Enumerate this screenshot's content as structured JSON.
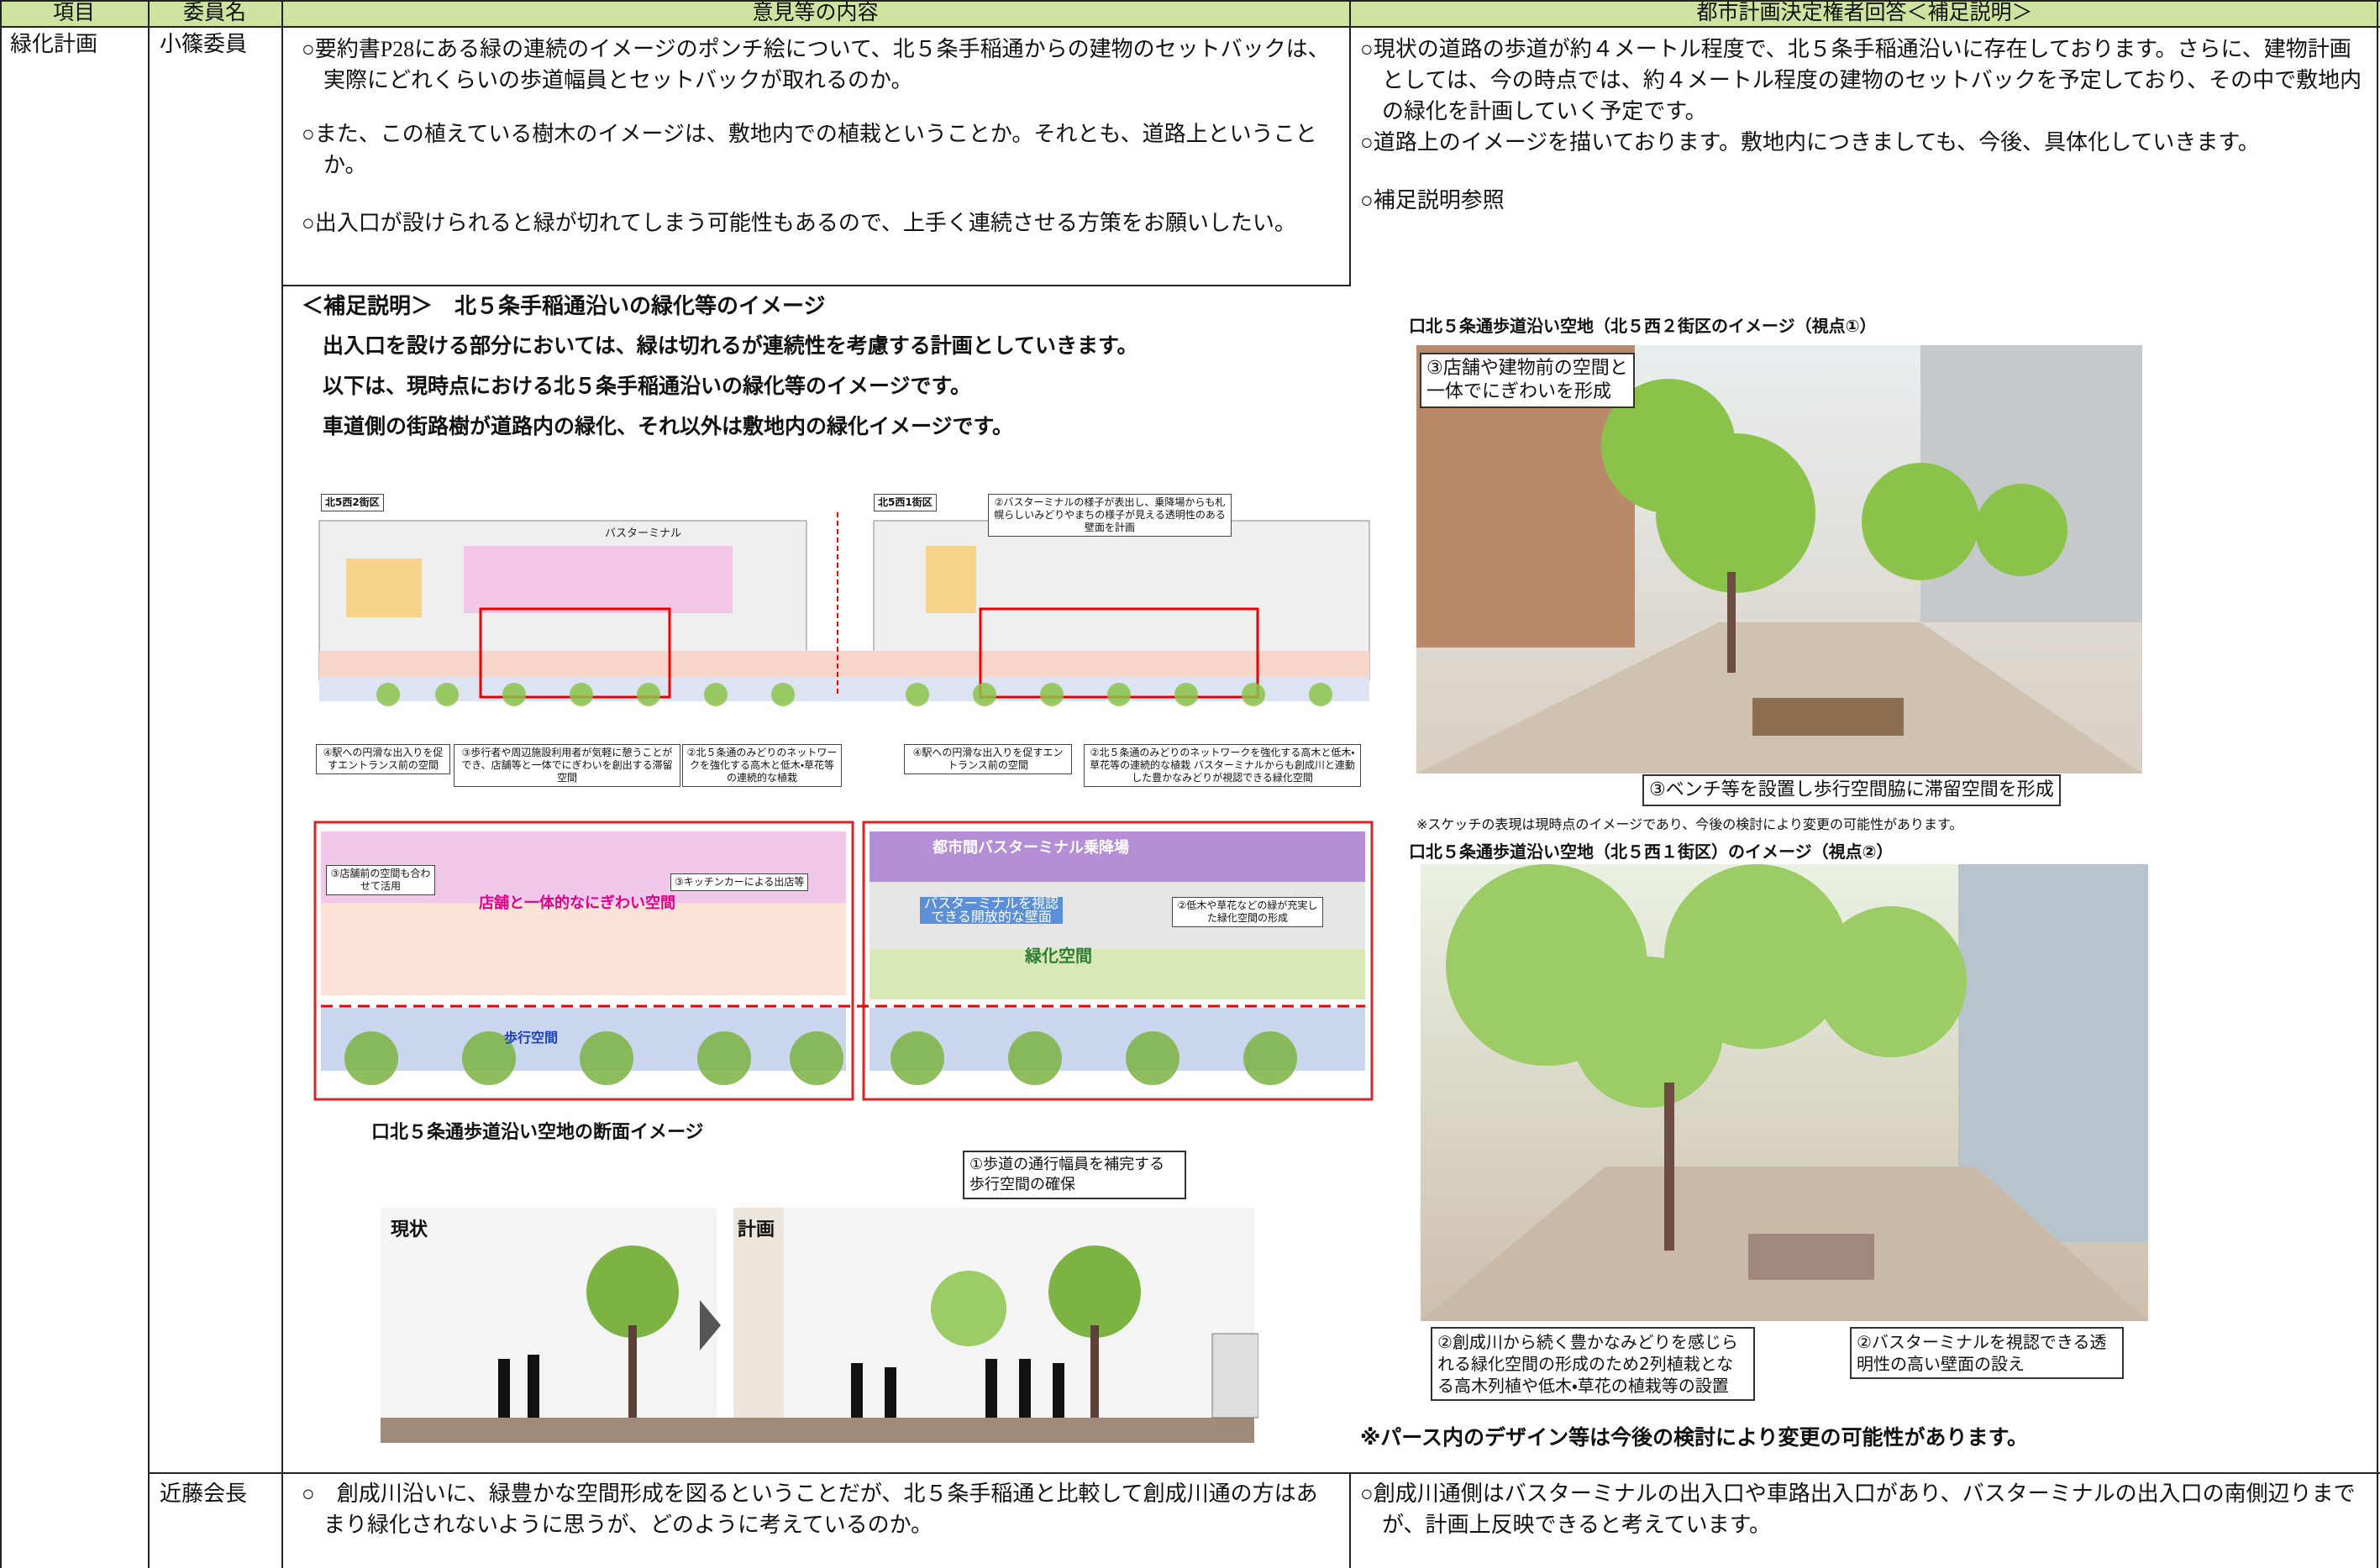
{
  "header": {
    "columns": [
      "項目",
      "委員名",
      "意見等の内容",
      "都市計画決定権者回答＜補足説明＞"
    ]
  },
  "rows": [
    {
      "item": "緑化計画",
      "member": "小篠委員",
      "opinions": [
        "○要約書P28にある緑の連続のイメージのポンチ絵について、北５条手稲通からの建物のセットバックは、実際にどれくらいの歩道幅員とセットバックが取れるのか。",
        "○また、この植えている樹木のイメージは、敷地内での植栽ということか。それとも、道路上ということか。",
        "○出入口が設けられると緑が切れてしまう可能性もあるので、上手く連続させる方策をお願いしたい。"
      ],
      "answers": [
        "○現状の道路の歩道が約４メートル程度で、北５条手稲通沿いに存在しております。さらに、建物計画としては、今の時点では、約４メートル程度の建物のセットバックを予定しており、その中で敷地内の緑化を計画していく予定です。",
        "○道路上のイメージを描いております。敷地内につきましても、今後、具体化していきます。",
        "○補足説明参照"
      ]
    },
    {
      "member": "近藤会長",
      "opinion": "○　創成川沿いに、緑豊かな空間形成を図るということだが、北５条手稲通と比較して創成川通の方はあまり緑化されないように思うが、どのように考えているのか。",
      "answer": "○創成川通側はバスターミナルの出入口や車路出入口があり、バスターミナルの出入口の南側辺りまでが、計画上反映できると考えています。"
    }
  ],
  "supplement": {
    "title": "＜補足説明＞　北５条手稲通沿いの緑化等のイメージ",
    "lines": [
      "出入口を設ける部分においては、緑は切れるが連続性を考慮する計画としていきます。",
      "以下は、現時点における北５条手稲通沿いの緑化等のイメージです。",
      "車道側の街路樹が道路内の緑化、それ以外は敷地内の緑化イメージです。"
    ],
    "plan": {
      "block_west": "北5西2街区",
      "block_east": "北5西1街区",
      "bus_terminal": "バスターミナル",
      "callout_wall": "②バスターミナルの様子が表出し、乗降場からも札幌らしいみどりやまちの様子が見える透明性のある壁面を計画",
      "callouts": [
        "④駅への円滑な出入りを促すエントランス前の空間",
        "③歩行者や周辺施設利用者が気軽に憩うことができ、店舗等と一体でにぎわいを創出する滞留空間",
        "②北５条通のみどりのネットワークを強化する高木と低木・草花等の連続的な植栽",
        "④駅への円滑な出入りを促すエントランス前の空間",
        "②北５条通のみどりのネットワークを強化する高木と低木・草花等の連続的な植栽 バスターミナルからも創成川と連動した豊かなみどりが視認できる緑化空間"
      ],
      "shop_space": "店舗と一体的なにぎわい空間",
      "shop_front": "③店舗前の空間も合わせて活用",
      "kitchen_car": "③キッチンカーによる出店等",
      "bus_platform": "都市間バスターミナル乗降場",
      "open_wall": "バスターミナルを視認できる開放的な壁面",
      "green_space": "緑化空間",
      "green_callout": "②低木や草花などの緑が充実した緑化空間の形成",
      "walk_space": "歩行空間"
    },
    "section": {
      "title": "口北５条通歩道沿い空地の断面イメージ",
      "current": "現状",
      "plan": "計画",
      "callout": "①歩道の通行幅員を補完する歩行空間の確保"
    },
    "sketch1": {
      "caption": "口北５条通歩道沿い空地（北５西２街区のイメージ（視点①）",
      "callout_top": "③店舗や建物前の空間と一体でにぎわいを形成",
      "callout_bottom": "③ベンチ等を設置し歩行空間脇に滞留空間を形成",
      "note": "※スケッチの表現は現時点のイメージであり、今後の検討により変更の可能性があります。"
    },
    "sketch2": {
      "caption": "口北５条通歩道沿い空地（北５西１街区）のイメージ（視点②）",
      "callout_left": "②創成川から続く豊かなみどりを感じられる緑化空間の形成のため2列植栽となる高木列植や低木・草花の植栽等の設置",
      "callout_right": "②バスターミナルを視認できる透明性の高い壁面の設え"
    },
    "note": "※パース内のデザイン等は今後の検討により変更の可能性があります。"
  }
}
